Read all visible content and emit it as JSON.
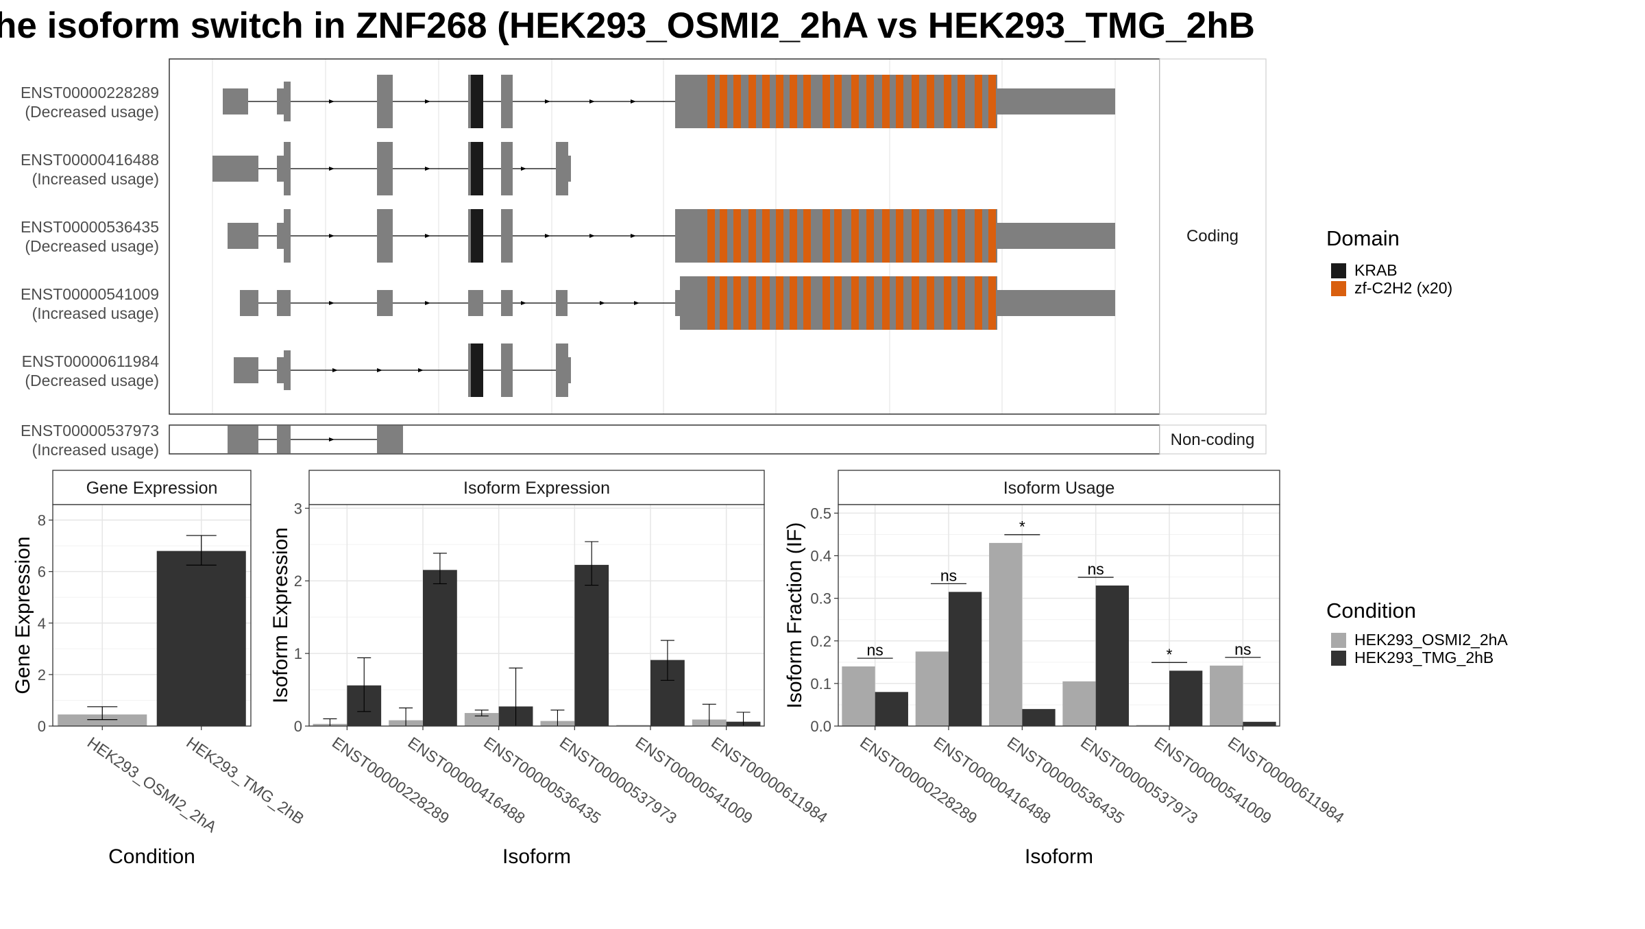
{
  "title": "he isoform switch in ZNF268 (HEK293_OSMI2_2hA vs HEK293_TMG_2hB",
  "colors": {
    "krab": "#1a1a1a",
    "zf": "#d95f0e",
    "exon": "#7f7f7f",
    "cond_a": "#a9a9a9",
    "cond_b": "#333333"
  },
  "structure": {
    "coding_label": "Coding",
    "noncoding_label": "Non-coding",
    "transcripts": [
      {
        "id": "ENST00000228289",
        "usage": "(Decreased usage)",
        "group": "coding"
      },
      {
        "id": "ENST00000416488",
        "usage": "(Increased usage)",
        "group": "coding"
      },
      {
        "id": "ENST00000536435",
        "usage": "(Decreased usage)",
        "group": "coding"
      },
      {
        "id": "ENST00000541009",
        "usage": "(Increased usage)",
        "group": "coding"
      },
      {
        "id": "ENST00000611984",
        "usage": "(Decreased usage)",
        "group": "coding"
      },
      {
        "id": "ENST00000537973",
        "usage": "(Increased usage)",
        "group": "noncoding"
      }
    ]
  },
  "legend": {
    "domain": {
      "title": "Domain",
      "items": [
        {
          "label": "KRAB",
          "color": "#1a1a1a"
        },
        {
          "label": "zf-C2H2 (x20)",
          "color": "#d95f0e"
        }
      ]
    },
    "condition": {
      "title": "Condition",
      "items": [
        {
          "label": "HEK293_OSMI2_2hA",
          "color": "#a9a9a9"
        },
        {
          "label": "HEK293_TMG_2hB",
          "color": "#333333"
        }
      ]
    }
  },
  "chart_data": [
    {
      "type": "bar",
      "title": "Gene Expression",
      "xlabel": "Condition",
      "ylabel": "Gene Expression",
      "ylim": [
        0,
        8.6
      ],
      "yticks": [
        0,
        2,
        4,
        6,
        8
      ],
      "categories": [
        "HEK293_OSMI2_2hA",
        "HEK293_TMG_2hB"
      ],
      "values": [
        0.45,
        6.8
      ],
      "errors": [
        [
          0.25,
          0.75
        ],
        [
          6.25,
          7.4
        ]
      ]
    },
    {
      "type": "bar",
      "title": "Isoform Expression",
      "xlabel": "Isoform",
      "ylabel": "Isoform Expression",
      "ylim": [
        0,
        3.05
      ],
      "yticks": [
        0,
        1,
        2,
        3
      ],
      "categories": [
        "ENST00000228289",
        "ENST00000416488",
        "ENST00000536435",
        "ENST00000537973",
        "ENST00000541009",
        "ENST00000611984"
      ],
      "series": [
        {
          "name": "HEK293_OSMI2_2hA",
          "values": [
            0.03,
            0.08,
            0.18,
            0.07,
            0.0,
            0.09
          ],
          "errors": [
            [
              0.0,
              0.1
            ],
            [
              0.0,
              0.25
            ],
            [
              0.14,
              0.22
            ],
            [
              0.0,
              0.22
            ],
            [
              0.0,
              0.0
            ],
            [
              0.0,
              0.3
            ]
          ]
        },
        {
          "name": "HEK293_TMG_2hB",
          "values": [
            0.56,
            2.15,
            0.27,
            2.22,
            0.91,
            0.06
          ],
          "errors": [
            [
              0.2,
              0.94
            ],
            [
              1.96,
              2.38
            ],
            [
              0.0,
              0.8
            ],
            [
              1.94,
              2.54
            ],
            [
              0.63,
              1.18
            ],
            [
              0.0,
              0.19
            ]
          ]
        }
      ]
    },
    {
      "type": "bar",
      "title": "Isoform Usage",
      "xlabel": "Isoform",
      "ylabel": "Isoform Fraction (IF)",
      "ylim": [
        0,
        0.52
      ],
      "yticks": [
        0.0,
        0.1,
        0.2,
        0.3,
        0.4,
        0.5
      ],
      "categories": [
        "ENST00000228289",
        "ENST00000416488",
        "ENST00000536435",
        "ENST00000537973",
        "ENST00000541009",
        "ENST00000611984"
      ],
      "series": [
        {
          "name": "HEK293_OSMI2_2hA",
          "values": [
            0.14,
            0.175,
            0.43,
            0.105,
            0.0,
            0.142
          ]
        },
        {
          "name": "HEK293_TMG_2hB",
          "values": [
            0.08,
            0.315,
            0.04,
            0.33,
            0.13,
            0.01
          ]
        }
      ],
      "significance": [
        "ns",
        "ns",
        "*",
        "ns",
        "*",
        "ns"
      ]
    }
  ]
}
